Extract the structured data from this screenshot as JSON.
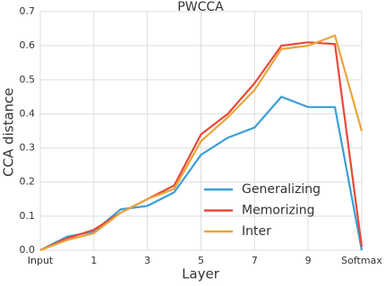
{
  "chart_data": {
    "type": "line",
    "title": "PWCCA",
    "x_label": "Layer",
    "y_label": "CCA distance",
    "categories": [
      "Input",
      null,
      "1",
      null,
      "3",
      null,
      "5",
      null,
      "7",
      null,
      "9",
      null,
      "Softmax"
    ],
    "series": [
      {
        "name": "Generalizing",
        "color": "#3a9fd6",
        "values": [
          0,
          0.04,
          0.055,
          0.12,
          0.13,
          0.17,
          0.28,
          0.33,
          0.36,
          0.45,
          0.42,
          0.42,
          0.0
        ]
      },
      {
        "name": "Memorizing",
        "color": "#e8483a",
        "values": [
          0,
          0.035,
          0.06,
          0.11,
          0.15,
          0.19,
          0.34,
          0.4,
          0.49,
          0.6,
          0.61,
          0.605,
          0.01
        ]
      },
      {
        "name": "Inter",
        "color": "#e8a53a",
        "values": [
          0,
          0.03,
          0.05,
          0.11,
          0.15,
          0.18,
          0.32,
          0.39,
          0.47,
          0.59,
          0.6,
          0.63,
          0.35
        ]
      }
    ],
    "ylim": [
      0,
      0.7
    ],
    "yticks": [
      {
        "value": 0,
        "label": "0.0"
      },
      0.1,
      0.2,
      0.3,
      0.4,
      0.5,
      0.6,
      0.7
    ],
    "grid": true,
    "legend": "lower right"
  }
}
